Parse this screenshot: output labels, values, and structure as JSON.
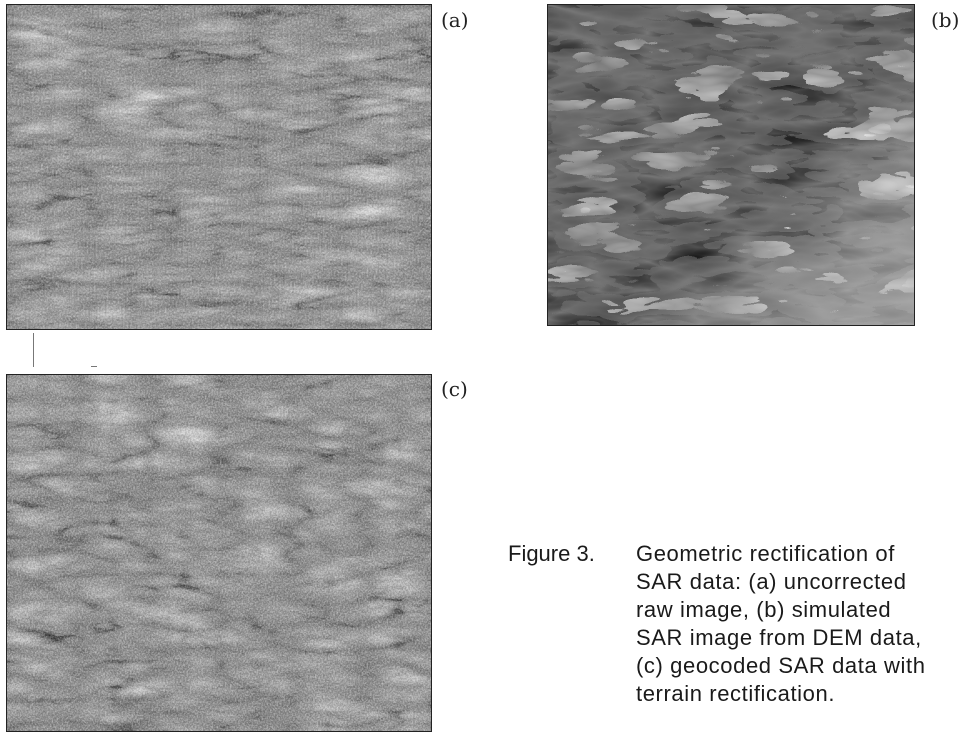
{
  "panels": {
    "a": {
      "label": "(a)"
    },
    "b": {
      "label": "(b)"
    },
    "c": {
      "label": "(c)"
    }
  },
  "caption": {
    "label": "Figure 3.",
    "lines": [
      "Geometric rectification of",
      "SAR data: (a) uncorrected",
      "raw image, (b) simulated",
      "SAR image from DEM data,",
      "(c) geocoded SAR data with",
      "terrain rectification."
    ]
  }
}
